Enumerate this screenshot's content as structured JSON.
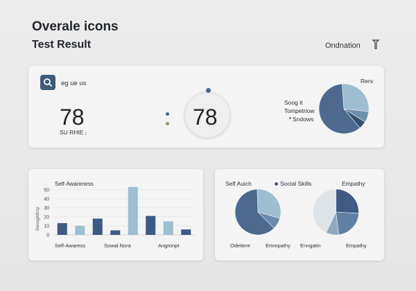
{
  "header": {
    "title": "Overale icons",
    "subtitle": "Test Result",
    "link": "Ondnation",
    "icon": "tool-icon"
  },
  "card1": {
    "search_label": "eg ue us",
    "score_left": "78",
    "score_left_caption": "SU RHIE ₍",
    "score_center": "78",
    "legend_title": "Rers",
    "legend": [
      "Soog it",
      "Tompetriow",
      "Sndows"
    ],
    "pie": [
      {
        "value": 60,
        "color": "#4d6a8e"
      },
      {
        "value": 28,
        "color": "#9dbdd0"
      },
      {
        "value": 7,
        "color": "#6f8fae"
      },
      {
        "value": 5,
        "color": "#37506e"
      }
    ]
  },
  "card2": {
    "legend": "Self-Awareness",
    "ylabel": "Gessgtdtrsy",
    "xlabels": [
      "Self-Awaress",
      "Sowal Nora",
      "Angronpt"
    ],
    "chart_data": {
      "type": "bar",
      "yticks": [
        0,
        10,
        20,
        30,
        40,
        50
      ],
      "ylim": [
        0,
        56
      ],
      "values": [
        13,
        10,
        18,
        5,
        53,
        21,
        15,
        6
      ],
      "colors": [
        "#3e5a80",
        "#9dbdd0",
        "#3e5a80",
        "#3e5a80",
        "#9dbdd0",
        "#3e5a80",
        "#9dbdd0",
        "#3e5a80"
      ]
    }
  },
  "card3": {
    "label_self": "Self Auich",
    "legend": "Social Skills",
    "label_empathy": "Empathy",
    "bottom_labels": [
      "Odetiere",
      "Emmpathy",
      "Enngatin",
      "Empathy"
    ],
    "pie_left": [
      {
        "value": 62,
        "color": "#4d6a8e"
      },
      {
        "value": 30,
        "color": "#9dbdd0"
      },
      {
        "value": 8,
        "color": "#6b8aab"
      }
    ],
    "pie_right": [
      {
        "value": 26,
        "color": "#3f5b84"
      },
      {
        "value": 22,
        "color": "#5f7fa3"
      },
      {
        "value": 9,
        "color": "#8fa9c1"
      },
      {
        "value": 43,
        "color": "#dfe4e8"
      }
    ]
  }
}
